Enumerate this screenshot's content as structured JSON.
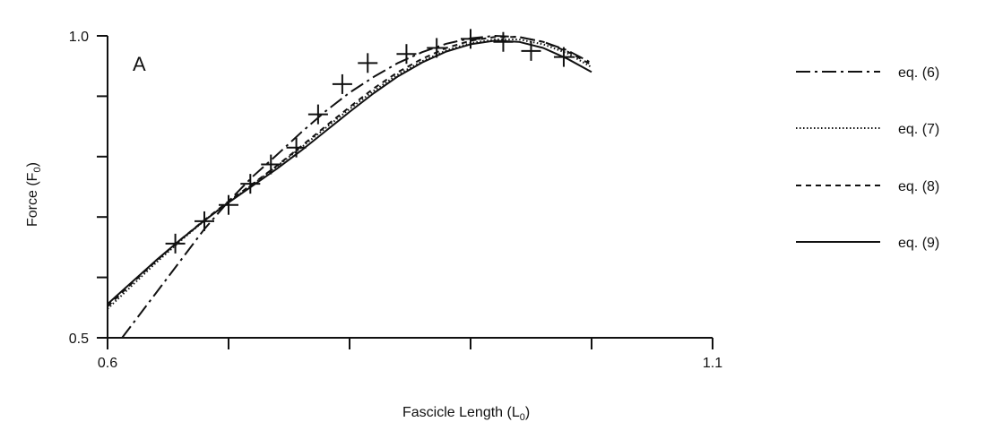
{
  "chart_data": {
    "type": "line",
    "panel_label": "A",
    "xlabel": "Fascicle Length (L",
    "xlabel_sub": "0",
    "xlabel_end": ")",
    "ylabel": "Force (F",
    "ylabel_sub": "0",
    "ylabel_end": ")",
    "xlim": [
      0.6,
      1.1
    ],
    "ylim": [
      0.5,
      1.0
    ],
    "x_tick_values": [
      0.6,
      0.7,
      0.8,
      0.9,
      1.0,
      1.1
    ],
    "x_tick_labels": [
      "0.6",
      "",
      "",
      "",
      "",
      "1.1"
    ],
    "y_tick_values": [
      0.5,
      0.6,
      0.7,
      0.8,
      0.9,
      1.0
    ],
    "y_tick_labels": [
      "0.5",
      "",
      "",
      "",
      "",
      "1.0"
    ],
    "grid": false,
    "legend_position": "right",
    "measured": {
      "x": [
        0.656,
        0.68,
        0.7,
        0.718,
        0.735,
        0.756,
        0.774,
        0.794,
        0.815,
        0.847,
        0.872,
        0.9,
        0.927,
        0.95,
        0.977
      ],
      "y": [
        0.656,
        0.693,
        0.72,
        0.755,
        0.787,
        0.815,
        0.87,
        0.92,
        0.955,
        0.97,
        0.98,
        0.995,
        0.99,
        0.975,
        0.965
      ]
    },
    "series": [
      {
        "name": "eq. (6)",
        "dash": "dashdot",
        "x": [
          0.612,
          0.64,
          0.66,
          0.68,
          0.7,
          0.72,
          0.74,
          0.76,
          0.78,
          0.8,
          0.82,
          0.84,
          0.86,
          0.88,
          0.9,
          0.92,
          0.94,
          0.96,
          0.98,
          1.0
        ],
        "y": [
          0.5,
          0.574,
          0.627,
          0.68,
          0.726,
          0.767,
          0.803,
          0.84,
          0.875,
          0.906,
          0.932,
          0.955,
          0.973,
          0.987,
          0.996,
          1.0,
          0.998,
          0.99,
          0.976,
          0.955
        ]
      },
      {
        "name": "eq. (7)",
        "dash": "dotted",
        "x": [
          0.6,
          0.62,
          0.64,
          0.66,
          0.68,
          0.7,
          0.72,
          0.74,
          0.76,
          0.78,
          0.8,
          0.82,
          0.84,
          0.86,
          0.88,
          0.9,
          0.92,
          0.94,
          0.96,
          0.98,
          1.0
        ],
        "y": [
          0.548,
          0.586,
          0.624,
          0.66,
          0.694,
          0.725,
          0.754,
          0.784,
          0.815,
          0.847,
          0.879,
          0.909,
          0.936,
          0.958,
          0.976,
          0.988,
          0.994,
          0.994,
          0.986,
          0.971,
          0.948
        ]
      },
      {
        "name": "eq. (8)",
        "dash": "dashed",
        "x": [
          0.6,
          0.62,
          0.64,
          0.66,
          0.68,
          0.7,
          0.72,
          0.74,
          0.76,
          0.78,
          0.8,
          0.82,
          0.84,
          0.86,
          0.88,
          0.9,
          0.92,
          0.94,
          0.96,
          0.98,
          1.0
        ],
        "y": [
          0.552,
          0.59,
          0.627,
          0.662,
          0.695,
          0.726,
          0.755,
          0.785,
          0.817,
          0.85,
          0.882,
          0.913,
          0.94,
          0.962,
          0.98,
          0.992,
          0.998,
          0.998,
          0.99,
          0.974,
          0.952
        ]
      },
      {
        "name": "eq. (9)",
        "dash": "solid",
        "x": [
          0.6,
          0.62,
          0.64,
          0.66,
          0.68,
          0.7,
          0.72,
          0.74,
          0.76,
          0.78,
          0.8,
          0.82,
          0.84,
          0.86,
          0.88,
          0.9,
          0.92,
          0.94,
          0.96,
          0.98,
          1.0
        ],
        "y": [
          0.556,
          0.592,
          0.628,
          0.662,
          0.694,
          0.724,
          0.752,
          0.78,
          0.81,
          0.842,
          0.874,
          0.905,
          0.933,
          0.956,
          0.974,
          0.986,
          0.992,
          0.99,
          0.98,
          0.962,
          0.94
        ]
      }
    ]
  }
}
